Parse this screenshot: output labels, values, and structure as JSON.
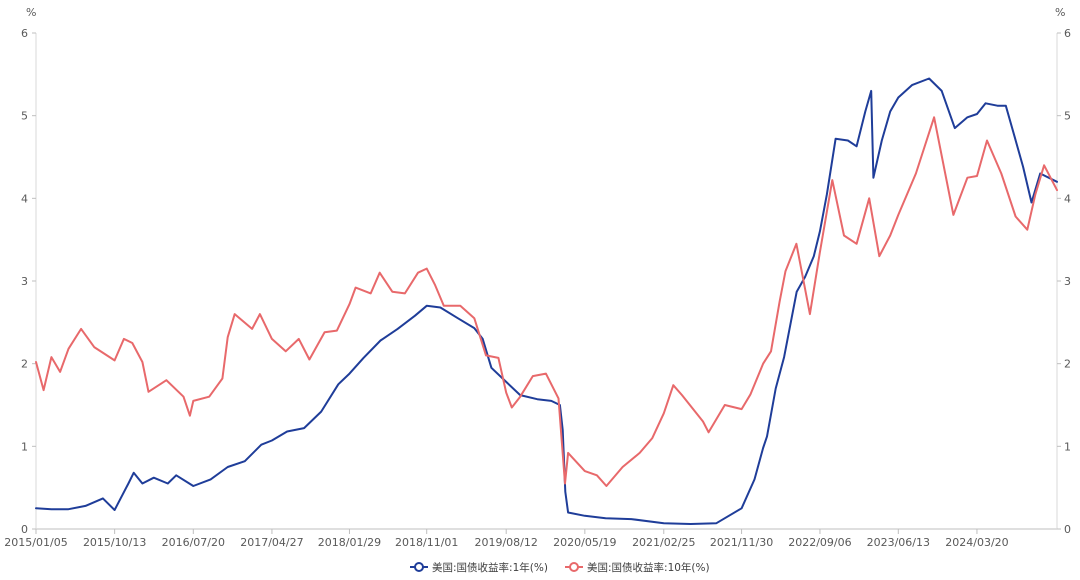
{
  "chart_data": {
    "type": "line",
    "title": "",
    "y_unit_left": "%",
    "y_unit_right": "%",
    "ylim": [
      0,
      6
    ],
    "yticks": [
      "0",
      "1",
      "2",
      "3",
      "4",
      "5",
      "6"
    ],
    "x_tick_labels": [
      "2015/01/05",
      "2015/10/13",
      "2016/07/20",
      "2017/04/27",
      "2018/01/29",
      "2018/11/01",
      "2019/08/12",
      "2020/05/19",
      "2021/02/25",
      "2021/11/30",
      "2022/09/06",
      "2023/06/13",
      "2024/03/20"
    ],
    "x_range": [
      "2015/01/05",
      "2024/12/31"
    ],
    "grid": false,
    "legend_position": "bottom-center",
    "series": [
      {
        "name": "美国:国债收益率:1年(%)",
        "color": "#1f3d99",
        "points": [
          [
            "2015/01/05",
            0.25
          ],
          [
            "2015/03/01",
            0.24
          ],
          [
            "2015/05/01",
            0.24
          ],
          [
            "2015/07/01",
            0.28
          ],
          [
            "2015/09/01",
            0.37
          ],
          [
            "2015/10/13",
            0.23
          ],
          [
            "2015/12/01",
            0.55
          ],
          [
            "2015/12/20",
            0.68
          ],
          [
            "2016/01/20",
            0.55
          ],
          [
            "2016/03/01",
            0.62
          ],
          [
            "2016/04/20",
            0.55
          ],
          [
            "2016/05/20",
            0.65
          ],
          [
            "2016/07/20",
            0.52
          ],
          [
            "2016/09/20",
            0.6
          ],
          [
            "2016/11/20",
            0.75
          ],
          [
            "2017/01/20",
            0.82
          ],
          [
            "2017/03/20",
            1.02
          ],
          [
            "2017/04/27",
            1.07
          ],
          [
            "2017/06/20",
            1.18
          ],
          [
            "2017/08/20",
            1.22
          ],
          [
            "2017/10/20",
            1.42
          ],
          [
            "2017/12/20",
            1.75
          ],
          [
            "2018/01/29",
            1.88
          ],
          [
            "2018/03/20",
            2.07
          ],
          [
            "2018/05/20",
            2.28
          ],
          [
            "2018/07/20",
            2.42
          ],
          [
            "2018/09/20",
            2.58
          ],
          [
            "2018/11/01",
            2.7
          ],
          [
            "2018/12/20",
            2.68
          ],
          [
            "2019/02/20",
            2.55
          ],
          [
            "2019/04/20",
            2.43
          ],
          [
            "2019/05/20",
            2.3
          ],
          [
            "2019/06/20",
            1.95
          ],
          [
            "2019/08/12",
            1.78
          ],
          [
            "2019/10/01",
            1.62
          ],
          [
            "2019/12/01",
            1.57
          ],
          [
            "2020/01/20",
            1.55
          ],
          [
            "2020/02/20",
            1.5
          ],
          [
            "2020/03/01",
            1.2
          ],
          [
            "2020/03/10",
            0.45
          ],
          [
            "2020/03/20",
            0.2
          ],
          [
            "2020/05/19",
            0.16
          ],
          [
            "2020/08/01",
            0.13
          ],
          [
            "2020/11/01",
            0.12
          ],
          [
            "2021/02/25",
            0.07
          ],
          [
            "2021/06/01",
            0.06
          ],
          [
            "2021/09/01",
            0.07
          ],
          [
            "2021/11/30",
            0.25
          ],
          [
            "2022/01/15",
            0.6
          ],
          [
            "2022/02/15",
            0.98
          ],
          [
            "2022/03/01",
            1.12
          ],
          [
            "2022/04/01",
            1.7
          ],
          [
            "2022/05/01",
            2.08
          ],
          [
            "2022/06/15",
            2.87
          ],
          [
            "2022/07/15",
            3.05
          ],
          [
            "2022/08/15",
            3.3
          ],
          [
            "2022/09/06",
            3.6
          ],
          [
            "2022/10/01",
            4.05
          ],
          [
            "2022/11/01",
            4.72
          ],
          [
            "2022/12/15",
            4.7
          ],
          [
            "2023/01/15",
            4.63
          ],
          [
            "2023/02/15",
            5.05
          ],
          [
            "2023/03/08",
            5.3
          ],
          [
            "2023/03/16",
            4.25
          ],
          [
            "2023/04/15",
            4.7
          ],
          [
            "2023/05/15",
            5.05
          ],
          [
            "2023/06/13",
            5.22
          ],
          [
            "2023/08/01",
            5.37
          ],
          [
            "2023/10/01",
            5.45
          ],
          [
            "2023/11/15",
            5.3
          ],
          [
            "2024/01/01",
            4.85
          ],
          [
            "2024/02/15",
            4.98
          ],
          [
            "2024/03/20",
            5.02
          ],
          [
            "2024/04/20",
            5.15
          ],
          [
            "2024/06/01",
            5.12
          ],
          [
            "2024/07/01",
            5.12
          ],
          [
            "2024/08/01",
            4.75
          ],
          [
            "2024/09/01",
            4.38
          ],
          [
            "2024/10/01",
            3.95
          ],
          [
            "2024/11/01",
            4.3
          ],
          [
            "2024/12/31",
            4.2
          ]
        ]
      },
      {
        "name": "美国:国债收益率:10年(%)",
        "color": "#e8696b",
        "points": [
          [
            "2015/01/05",
            2.02
          ],
          [
            "2015/02/01",
            1.68
          ],
          [
            "2015/03/01",
            2.08
          ],
          [
            "2015/04/01",
            1.9
          ],
          [
            "2015/05/01",
            2.18
          ],
          [
            "2015/06/15",
            2.42
          ],
          [
            "2015/08/01",
            2.2
          ],
          [
            "2015/10/13",
            2.04
          ],
          [
            "2015/11/15",
            2.3
          ],
          [
            "2015/12/15",
            2.25
          ],
          [
            "2016/01/20",
            2.02
          ],
          [
            "2016/02/11",
            1.66
          ],
          [
            "2016/04/15",
            1.8
          ],
          [
            "2016/06/15",
            1.6
          ],
          [
            "2016/07/08",
            1.37
          ],
          [
            "2016/07/20",
            1.55
          ],
          [
            "2016/09/15",
            1.6
          ],
          [
            "2016/11/01",
            1.82
          ],
          [
            "2016/11/20",
            2.32
          ],
          [
            "2016/12/15",
            2.6
          ],
          [
            "2017/02/15",
            2.42
          ],
          [
            "2017/03/15",
            2.6
          ],
          [
            "2017/04/27",
            2.3
          ],
          [
            "2017/06/15",
            2.15
          ],
          [
            "2017/08/01",
            2.3
          ],
          [
            "2017/09/08",
            2.05
          ],
          [
            "2017/11/01",
            2.38
          ],
          [
            "2017/12/15",
            2.4
          ],
          [
            "2018/01/29",
            2.72
          ],
          [
            "2018/02/20",
            2.92
          ],
          [
            "2018/04/15",
            2.85
          ],
          [
            "2018/05/17",
            3.1
          ],
          [
            "2018/07/01",
            2.87
          ],
          [
            "2018/08/15",
            2.85
          ],
          [
            "2018/10/01",
            3.1
          ],
          [
            "2018/11/01",
            3.15
          ],
          [
            "2018/12/01",
            2.95
          ],
          [
            "2019/01/01",
            2.7
          ],
          [
            "2019/03/01",
            2.7
          ],
          [
            "2019/04/20",
            2.55
          ],
          [
            "2019/06/01",
            2.1
          ],
          [
            "2019/07/15",
            2.07
          ],
          [
            "2019/08/12",
            1.65
          ],
          [
            "2019/09/01",
            1.47
          ],
          [
            "2019/10/01",
            1.6
          ],
          [
            "2019/11/15",
            1.85
          ],
          [
            "2020/01/01",
            1.88
          ],
          [
            "2020/02/15",
            1.58
          ],
          [
            "2020/03/09",
            0.55
          ],
          [
            "2020/03/20",
            0.92
          ],
          [
            "2020/05/19",
            0.7
          ],
          [
            "2020/07/01",
            0.65
          ],
          [
            "2020/08/04",
            0.52
          ],
          [
            "2020/10/01",
            0.75
          ],
          [
            "2020/12/01",
            0.92
          ],
          [
            "2021/01/15",
            1.1
          ],
          [
            "2021/02/25",
            1.4
          ],
          [
            "2021/03/31",
            1.74
          ],
          [
            "2021/05/01",
            1.62
          ],
          [
            "2021/07/15",
            1.3
          ],
          [
            "2021/08/04",
            1.17
          ],
          [
            "2021/10/01",
            1.5
          ],
          [
            "2021/11/30",
            1.45
          ],
          [
            "2022/01/01",
            1.63
          ],
          [
            "2022/02/15",
            2.0
          ],
          [
            "2022/03/15",
            2.15
          ],
          [
            "2022/04/15",
            2.75
          ],
          [
            "2022/05/06",
            3.12
          ],
          [
            "2022/06/14",
            3.45
          ],
          [
            "2022/08/01",
            2.6
          ],
          [
            "2022/09/06",
            3.35
          ],
          [
            "2022/10/20",
            4.22
          ],
          [
            "2022/12/01",
            3.55
          ],
          [
            "2023/01/15",
            3.45
          ],
          [
            "2023/03/01",
            4.0
          ],
          [
            "2023/04/06",
            3.3
          ],
          [
            "2023/05/15",
            3.55
          ],
          [
            "2023/06/13",
            3.8
          ],
          [
            "2023/08/15",
            4.3
          ],
          [
            "2023/10/19",
            4.98
          ],
          [
            "2023/12/27",
            3.8
          ],
          [
            "2024/02/15",
            4.25
          ],
          [
            "2024/03/20",
            4.27
          ],
          [
            "2024/04/25",
            4.7
          ],
          [
            "2024/06/15",
            4.3
          ],
          [
            "2024/08/05",
            3.78
          ],
          [
            "2024/09/16",
            3.62
          ],
          [
            "2024/10/15",
            4.05
          ],
          [
            "2024/11/15",
            4.4
          ],
          [
            "2024/12/31",
            4.1
          ]
        ]
      }
    ]
  }
}
